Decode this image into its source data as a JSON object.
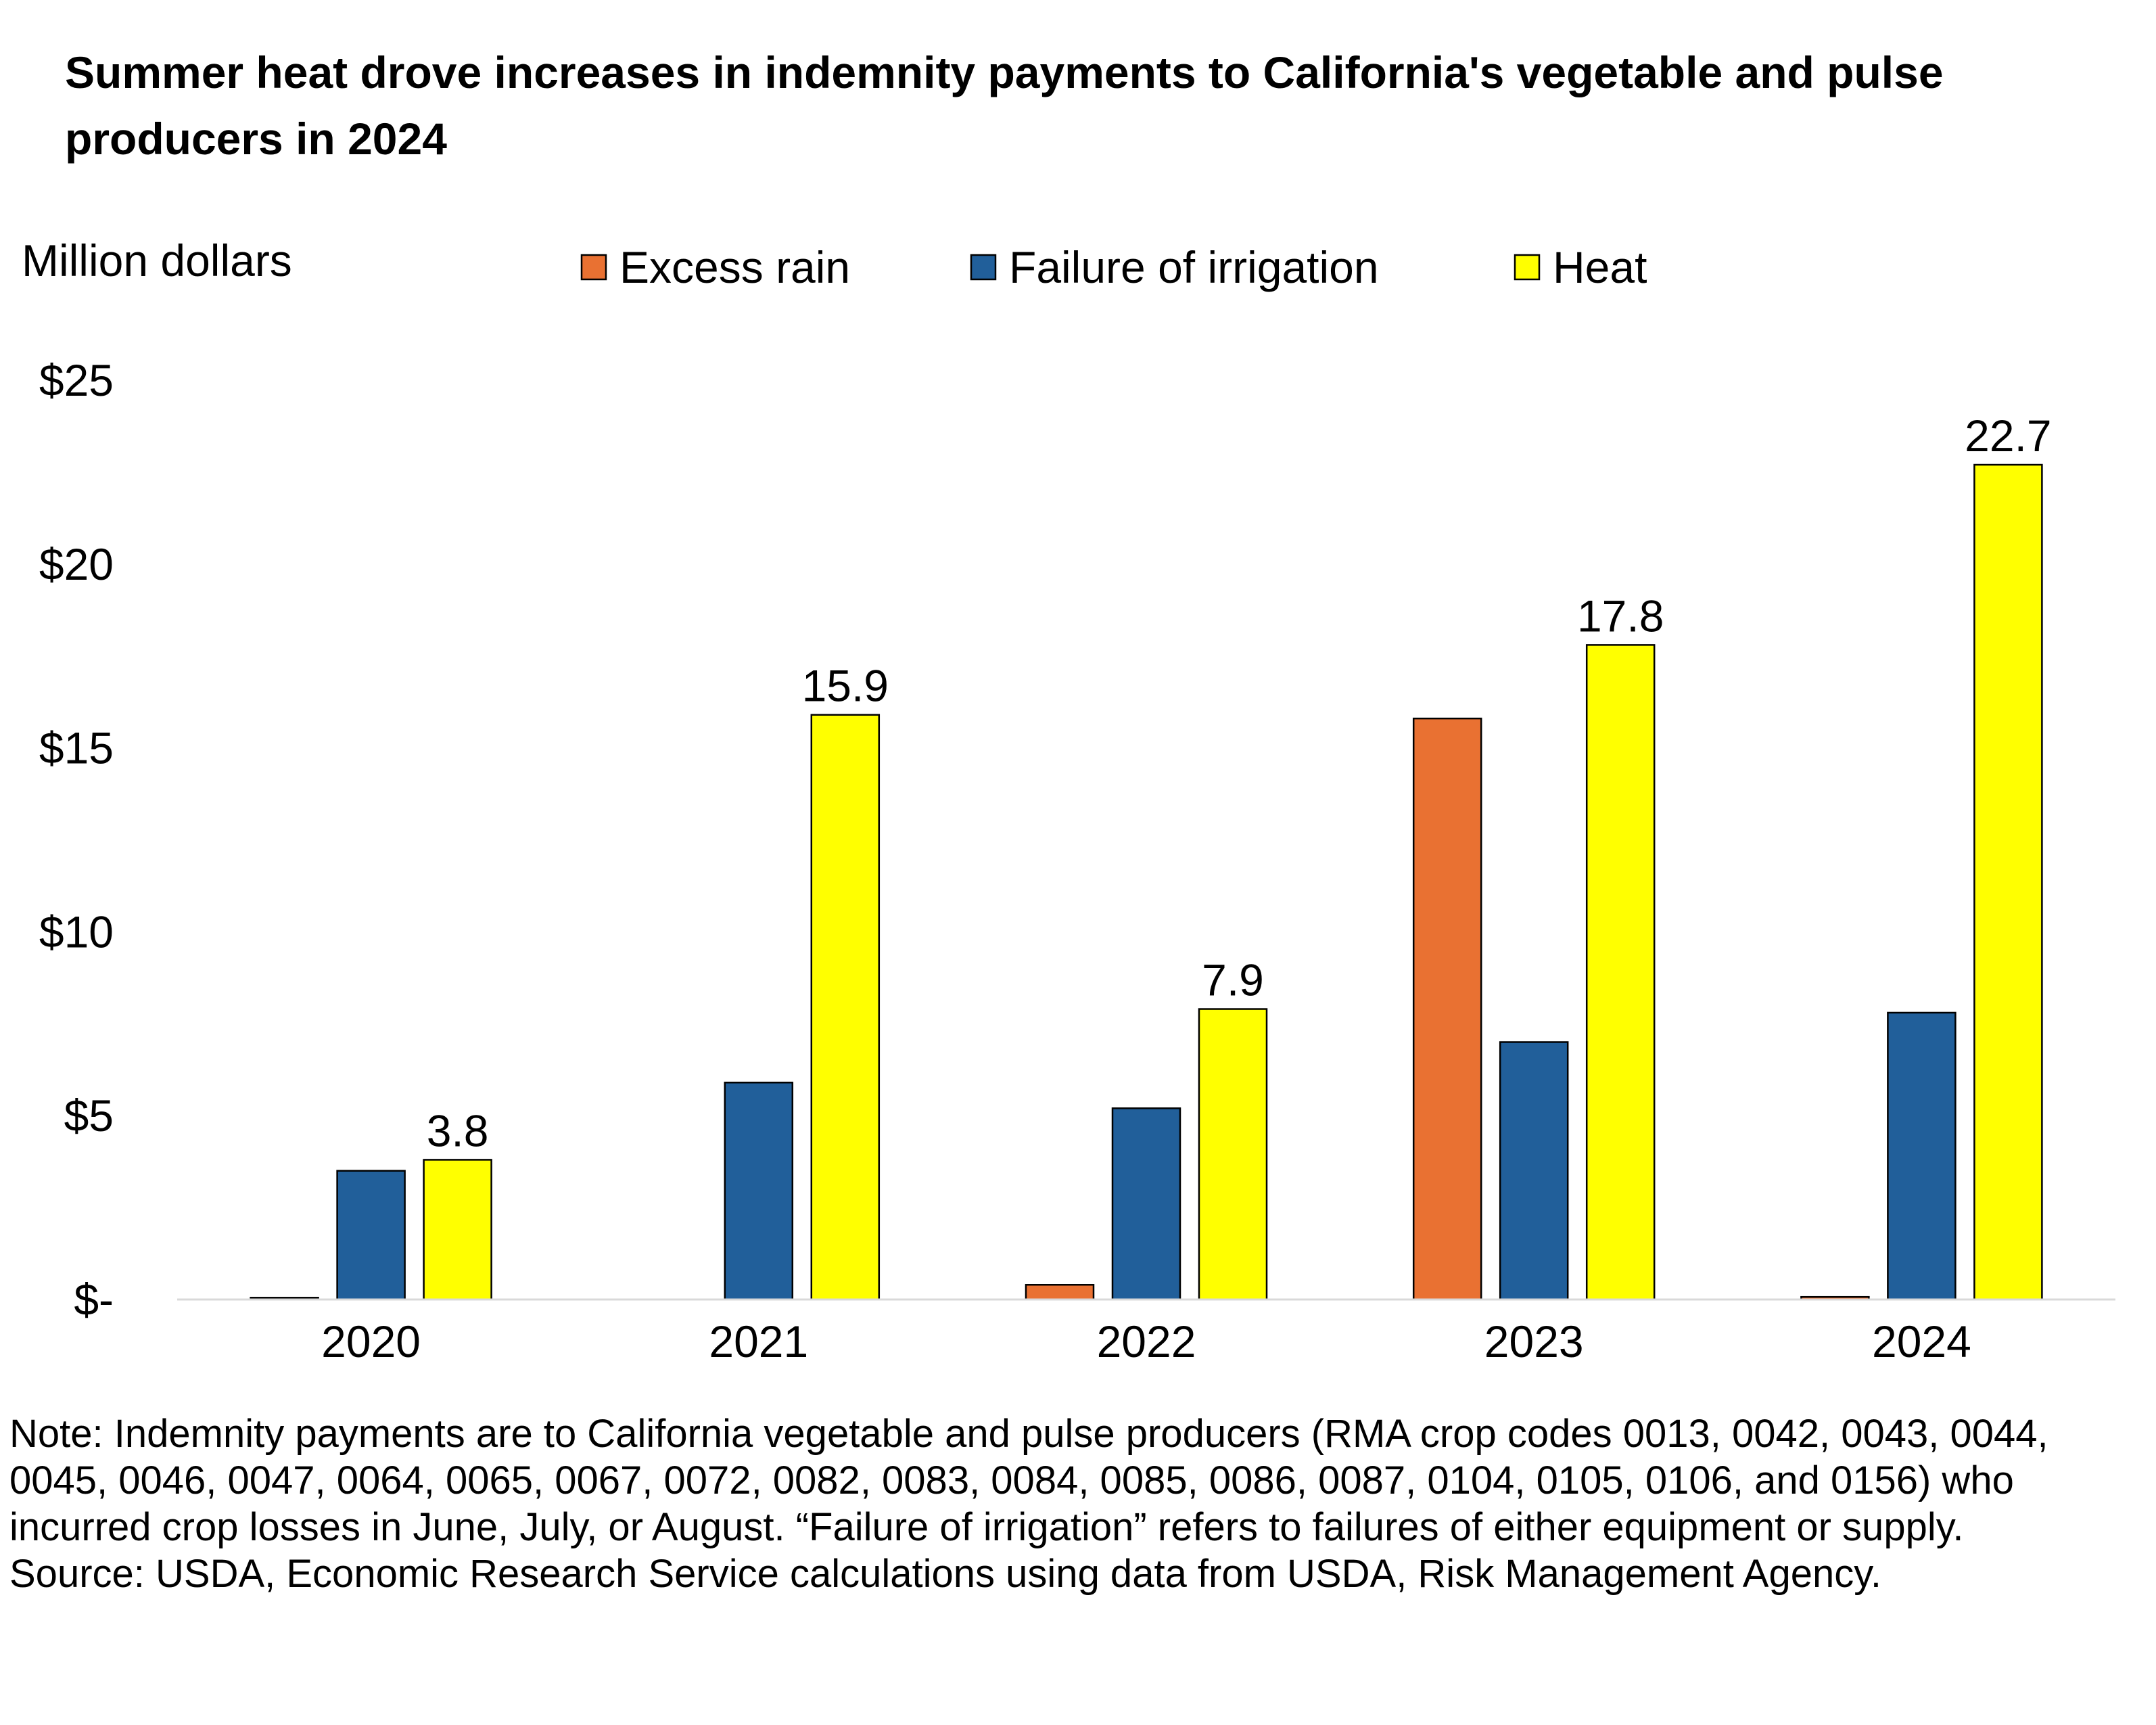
{
  "chart_data": {
    "type": "bar",
    "title": "Summer heat drove increases in indemnity payments to California's vegetable and pulse producers in 2024",
    "ylabel": "Million dollars",
    "ylim": [
      0,
      25
    ],
    "yticks": [
      {
        "value": 0,
        "label": "$-"
      },
      {
        "value": 5,
        "label": "$5"
      },
      {
        "value": 10,
        "label": "$10"
      },
      {
        "value": 15,
        "label": "$15"
      },
      {
        "value": 20,
        "label": "$20"
      },
      {
        "value": 25,
        "label": "$25"
      }
    ],
    "categories": [
      "2020",
      "2021",
      "2022",
      "2023",
      "2024"
    ],
    "series": [
      {
        "name": "Excess rain",
        "color": "#E97132",
        "values": [
          0.05,
          0,
          0.4,
          15.8,
          0.07
        ]
      },
      {
        "name": "Failure of irrigation",
        "color": "#215F9A",
        "values": [
          3.5,
          5.9,
          5.2,
          7.0,
          7.8
        ]
      },
      {
        "name": "Heat",
        "color": "#FFFF00",
        "values": [
          3.8,
          15.9,
          7.9,
          17.8,
          22.7
        ]
      }
    ],
    "data_labels": {
      "series": "Heat",
      "labels": [
        "3.8",
        "15.9",
        "7.9",
        "17.8",
        "22.7"
      ]
    },
    "legend_position": "top",
    "grid": false
  },
  "footnote": {
    "note": "Note: Indemnity payments are to California vegetable and pulse producers (RMA crop codes 0013, 0042, 0043, 0044, 0045, 0046, 0047, 0064, 0065, 0067, 0072, 0082, 0083, 0084, 0085, 0086, 0087, 0104, 0105, 0106, and 0156) who incurred crop losses in June, July, or August. “Failure of irrigation” refers to failures of either equipment or supply.",
    "source": "Source: USDA, Economic Research Service calculations using data from USDA, Risk Management Agency."
  }
}
